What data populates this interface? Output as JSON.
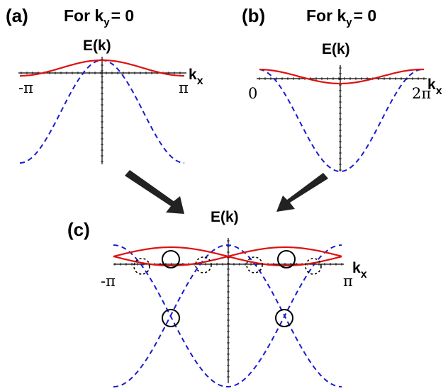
{
  "panels": {
    "a": {
      "letter": "(a)",
      "title_prefix": "For k",
      "title_sub": "y",
      "title_suffix": "= 0",
      "energy_label": "E(k)",
      "x_left": "-π",
      "x_right": "π",
      "x_axis_main": "k",
      "x_axis_sub": "x"
    },
    "b": {
      "letter": "(b)",
      "title_prefix": "For k",
      "title_sub": "y",
      "title_suffix": "= 0",
      "energy_label": "E(k)",
      "x_left": "0",
      "x_right": "2π",
      "x_axis_main": "k",
      "x_axis_sub": "x"
    },
    "c": {
      "letter": "(c)",
      "energy_label": "E(k)",
      "x_left": "-π",
      "x_right": "π",
      "x_axis_main": "k",
      "x_axis_sub": "x"
    }
  },
  "colors": {
    "solid_band": "#e01010",
    "dashed_band": "#1a1ad0",
    "arrow": "#222222"
  }
}
